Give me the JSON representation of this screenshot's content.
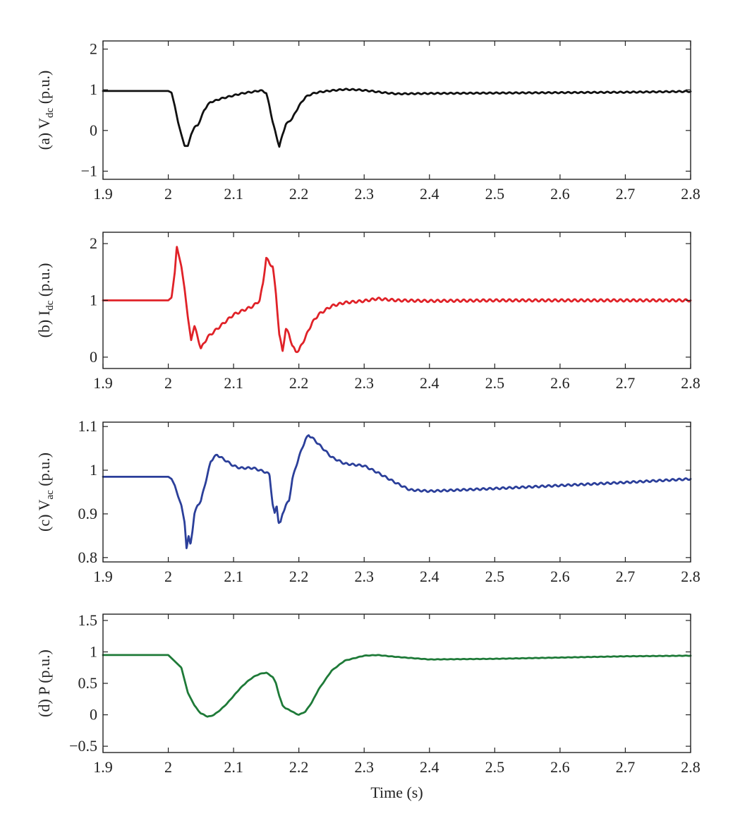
{
  "chart_data": [
    {
      "type": "line",
      "ylabel_main": "(a) V",
      "ylabel_sub": "dc",
      "ylabel_suffix": " (p.u.)",
      "xlabel": "",
      "xlim": [
        1.9,
        2.8
      ],
      "ylim": [
        -1.2,
        2.2
      ],
      "xticks": [
        1.9,
        2.0,
        2.1,
        2.2,
        2.3,
        2.4,
        2.5,
        2.6,
        2.7,
        2.8
      ],
      "xtick_labels": [
        "1.9",
        "2",
        "2.1",
        "2.2",
        "2.3",
        "2.4",
        "2.5",
        "2.6",
        "2.7",
        "2.8"
      ],
      "yticks": [
        -1,
        0,
        1,
        2
      ],
      "ytick_labels": [
        "−1",
        "0",
        "1",
        "2"
      ],
      "color": "#111111",
      "series": [
        {
          "x": [
            1.9,
            2.0,
            2.005,
            2.01,
            2.015,
            2.02,
            2.025,
            2.03,
            2.035,
            2.04,
            2.045,
            2.05,
            2.055,
            2.06,
            2.065,
            2.07,
            2.08,
            2.09,
            2.1,
            2.11,
            2.12,
            2.13,
            2.14,
            2.145,
            2.15,
            2.155,
            2.16,
            2.165,
            2.17,
            2.175,
            2.18,
            2.185,
            2.19,
            2.2,
            2.21,
            2.22,
            2.23,
            2.25,
            2.27,
            2.29,
            2.31,
            2.33,
            2.35,
            2.4,
            2.5,
            2.6,
            2.7,
            2.8
          ],
          "y": [
            0.97,
            0.97,
            0.93,
            0.6,
            0.2,
            -0.1,
            -0.38,
            -0.38,
            -0.1,
            0.08,
            0.12,
            0.3,
            0.5,
            0.62,
            0.7,
            0.72,
            0.78,
            0.82,
            0.86,
            0.9,
            0.93,
            0.95,
            0.98,
            0.97,
            0.92,
            0.6,
            0.2,
            -0.1,
            -0.4,
            -0.1,
            0.15,
            0.22,
            0.3,
            0.6,
            0.82,
            0.9,
            0.94,
            0.98,
            1.01,
            1.0,
            0.97,
            0.93,
            0.9,
            0.91,
            0.92,
            0.93,
            0.94,
            0.96
          ],
          "ripple": 0.015
        }
      ]
    },
    {
      "type": "line",
      "ylabel_main": "(b) I",
      "ylabel_sub": "dc",
      "ylabel_suffix": " (p.u.)",
      "xlabel": "",
      "xlim": [
        1.9,
        2.8
      ],
      "ylim": [
        -0.2,
        2.2
      ],
      "xticks": [
        1.9,
        2.0,
        2.1,
        2.2,
        2.3,
        2.4,
        2.5,
        2.6,
        2.7,
        2.8
      ],
      "xtick_labels": [
        "1.9",
        "2",
        "2.1",
        "2.2",
        "2.3",
        "2.4",
        "2.5",
        "2.6",
        "2.7",
        "2.8"
      ],
      "yticks": [
        0,
        1,
        2
      ],
      "ytick_labels": [
        "0",
        "1",
        "2"
      ],
      "color": "#e02228",
      "series": [
        {
          "x": [
            1.9,
            2.0,
            2.005,
            2.01,
            2.013,
            2.016,
            2.02,
            2.025,
            2.03,
            2.035,
            2.04,
            2.045,
            2.05,
            2.055,
            2.06,
            2.07,
            2.08,
            2.09,
            2.1,
            2.11,
            2.12,
            2.13,
            2.14,
            2.145,
            2.15,
            2.155,
            2.16,
            2.165,
            2.17,
            2.175,
            2.18,
            2.185,
            2.19,
            2.195,
            2.2,
            2.21,
            2.22,
            2.23,
            2.25,
            2.27,
            2.3,
            2.32,
            2.35,
            2.4,
            2.5,
            2.6,
            2.7,
            2.8
          ],
          "y": [
            1.0,
            1.0,
            1.05,
            1.5,
            1.95,
            1.8,
            1.6,
            1.2,
            0.7,
            0.3,
            0.55,
            0.35,
            0.15,
            0.25,
            0.35,
            0.45,
            0.55,
            0.65,
            0.75,
            0.8,
            0.85,
            0.9,
            1.0,
            1.3,
            1.75,
            1.65,
            1.6,
            1.1,
            0.4,
            0.1,
            0.5,
            0.4,
            0.2,
            0.1,
            0.12,
            0.35,
            0.6,
            0.75,
            0.9,
            0.96,
            0.99,
            1.03,
            1.0,
            0.99,
            1.0,
            1.0,
            1.0,
            1.0
          ],
          "ripple": 0.02
        }
      ]
    },
    {
      "type": "line",
      "ylabel_main": "(c) V",
      "ylabel_sub": "ac",
      "ylabel_suffix": " (p.u.)",
      "xlabel": "",
      "xlim": [
        1.9,
        2.8
      ],
      "ylim": [
        0.79,
        1.11
      ],
      "xticks": [
        1.9,
        2.0,
        2.1,
        2.2,
        2.3,
        2.4,
        2.5,
        2.6,
        2.7,
        2.8
      ],
      "xtick_labels": [
        "1.9",
        "2",
        "2.1",
        "2.2",
        "2.3",
        "2.4",
        "2.5",
        "2.6",
        "2.7",
        "2.8"
      ],
      "yticks": [
        0.8,
        0.9,
        1.0,
        1.1
      ],
      "ytick_labels": [
        "0.8",
        "0.9",
        "1",
        "1.1"
      ],
      "color": "#2b3f9a",
      "series": [
        {
          "x": [
            1.9,
            2.0,
            2.005,
            2.01,
            2.015,
            2.02,
            2.025,
            2.028,
            2.031,
            2.034,
            2.037,
            2.04,
            2.045,
            2.05,
            2.055,
            2.06,
            2.065,
            2.07,
            2.075,
            2.08,
            2.09,
            2.1,
            2.11,
            2.12,
            2.13,
            2.14,
            2.15,
            2.155,
            2.16,
            2.163,
            2.166,
            2.169,
            2.172,
            2.175,
            2.18,
            2.185,
            2.19,
            2.2,
            2.21,
            2.215,
            2.22,
            2.23,
            2.25,
            2.27,
            2.3,
            2.32,
            2.35,
            2.37,
            2.4,
            2.5,
            2.6,
            2.7,
            2.8
          ],
          "y": [
            0.985,
            0.985,
            0.98,
            0.965,
            0.94,
            0.92,
            0.88,
            0.82,
            0.85,
            0.83,
            0.86,
            0.9,
            0.92,
            0.93,
            0.96,
            0.99,
            1.02,
            1.03,
            1.035,
            1.03,
            1.02,
            1.01,
            1.005,
            1.005,
            1.005,
            1.0,
            0.995,
            0.99,
            0.92,
            0.9,
            0.92,
            0.88,
            0.88,
            0.9,
            0.92,
            0.93,
            0.98,
            1.03,
            1.07,
            1.08,
            1.075,
            1.06,
            1.03,
            1.015,
            1.01,
            0.995,
            0.97,
            0.955,
            0.952,
            0.958,
            0.965,
            0.972,
            0.98
          ],
          "ripple": 0.002
        }
      ]
    },
    {
      "type": "line",
      "ylabel_main": "(d) P (p.u.)",
      "ylabel_sub": "",
      "ylabel_suffix": "",
      "xlabel": "Time (s)",
      "xlim": [
        1.9,
        2.8
      ],
      "ylim": [
        -0.6,
        1.6
      ],
      "xticks": [
        1.9,
        2.0,
        2.1,
        2.2,
        2.3,
        2.4,
        2.5,
        2.6,
        2.7,
        2.8
      ],
      "xtick_labels": [
        "1.9",
        "2",
        "2.1",
        "2.2",
        "2.3",
        "2.4",
        "2.5",
        "2.6",
        "2.7",
        "2.8"
      ],
      "yticks": [
        -0.5,
        0,
        0.5,
        1.0,
        1.5
      ],
      "ytick_labels": [
        "−0.5",
        "0",
        "0.5",
        "1",
        "1.5"
      ],
      "color": "#1e7a38",
      "series": [
        {
          "x": [
            1.9,
            2.0,
            2.01,
            2.02,
            2.025,
            2.03,
            2.035,
            2.04,
            2.045,
            2.05,
            2.055,
            2.06,
            2.065,
            2.07,
            2.08,
            2.09,
            2.1,
            2.11,
            2.12,
            2.13,
            2.14,
            2.15,
            2.16,
            2.165,
            2.17,
            2.175,
            2.18,
            2.185,
            2.19,
            2.195,
            2.2,
            2.21,
            2.22,
            2.23,
            2.25,
            2.27,
            2.3,
            2.32,
            2.35,
            2.4,
            2.5,
            2.6,
            2.7,
            2.8
          ],
          "y": [
            0.95,
            0.95,
            0.85,
            0.75,
            0.55,
            0.35,
            0.25,
            0.15,
            0.08,
            0.02,
            0.0,
            -0.03,
            -0.02,
            0.0,
            0.08,
            0.18,
            0.3,
            0.42,
            0.52,
            0.6,
            0.65,
            0.67,
            0.6,
            0.5,
            0.3,
            0.15,
            0.1,
            0.08,
            0.05,
            0.02,
            0.0,
            0.05,
            0.2,
            0.4,
            0.7,
            0.86,
            0.94,
            0.95,
            0.92,
            0.88,
            0.89,
            0.91,
            0.93,
            0.94
          ],
          "ripple": 0.003
        }
      ]
    }
  ]
}
